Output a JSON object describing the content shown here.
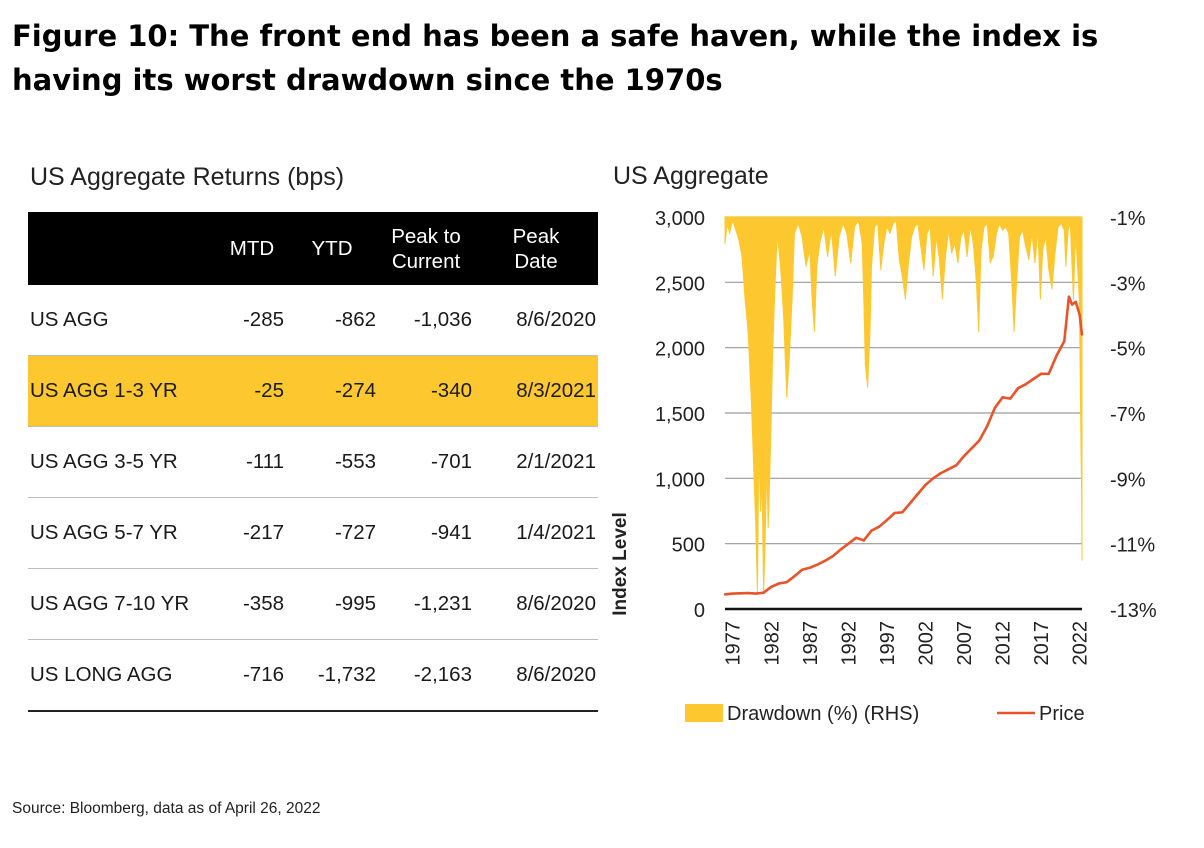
{
  "figure": {
    "title": "Figure 10: The front end has been a safe haven, while the index is having its worst drawdown since the 1970s",
    "source": "Source: Bloomberg, data as of April 26, 2022"
  },
  "table": {
    "title": "US Aggregate Returns (bps)",
    "headers": {
      "mtd": "MTD",
      "ytd": "YTD",
      "peak_line1": "Peak to",
      "peak_line2": "Current",
      "date_line1": "Peak",
      "date_line2": "Date"
    },
    "rows": [
      {
        "name": "US AGG",
        "mtd": "-285",
        "ytd": "-862",
        "peak": "-1,036",
        "date": "8/6/2020"
      },
      {
        "name": "US AGG 1-3 YR",
        "mtd": "-25",
        "ytd": "-274",
        "peak": "-340",
        "date": "8/3/2021"
      },
      {
        "name": "US AGG 3-5 YR",
        "mtd": "-111",
        "ytd": "-553",
        "peak": "-701",
        "date": "2/1/2021"
      },
      {
        "name": "US AGG 5-7 YR",
        "mtd": "-217",
        "ytd": "-727",
        "peak": "-941",
        "date": "1/4/2021"
      },
      {
        "name": "US AGG 7-10 YR",
        "mtd": "-358",
        "ytd": "-995",
        "peak": "-1,231",
        "date": "8/6/2020"
      },
      {
        "name": "US LONG AGG",
        "mtd": "-716",
        "ytd": "-1,732",
        "peak": "-2,163",
        "date": "8/6/2020"
      }
    ],
    "highlight_row": 1,
    "highlight_color": "#fdc82f"
  },
  "chart_data": {
    "type": "line",
    "title": "US Aggregate",
    "ylabel": "Index Level",
    "ylim": [
      0,
      3000
    ],
    "y_ticks": [
      "0",
      "500",
      "1,000",
      "1,500",
      "2,000",
      "2,500",
      "3,000"
    ],
    "y_right_lim": [
      -13,
      -1
    ],
    "y_right_ticks": [
      "-13%",
      "-11%",
      "-9%",
      "-7%",
      "-5%",
      "-3%",
      "-1%"
    ],
    "xlim": [
      1976,
      2022.3
    ],
    "x_ticks": [
      "1977",
      "1982",
      "1987",
      "1992",
      "1997",
      "2002",
      "2007",
      "2012",
      "2017",
      "2022"
    ],
    "grid": true,
    "legend_position": "bottom",
    "series": [
      {
        "name": "Drawdown (%) (RHS)",
        "kind": "area",
        "axis": "right",
        "color": "#fdc82f",
        "x": [
          1976,
          1976.3,
          1976.6,
          1977,
          1977.4,
          1977.8,
          1978.2,
          1978.6,
          1979,
          1979.4,
          1979.7,
          1980,
          1980.2,
          1980.4,
          1980.6,
          1980.8,
          1981,
          1981.2,
          1981.4,
          1981.6,
          1981.8,
          1982,
          1982.2,
          1982.5,
          1982.8,
          1983.2,
          1983.6,
          1984,
          1984.3,
          1984.7,
          1985,
          1985.5,
          1986,
          1986.5,
          1987,
          1987.3,
          1987.6,
          1987.9,
          1988.3,
          1988.8,
          1989.3,
          1989.8,
          1990.3,
          1990.8,
          1991.3,
          1991.8,
          1992.3,
          1992.8,
          1993.3,
          1993.8,
          1994,
          1994.2,
          1994.5,
          1994.8,
          1995,
          1995.4,
          1995.8,
          1996.2,
          1996.6,
          1997,
          1997.4,
          1997.8,
          1998.2,
          1998.6,
          1999,
          1999.4,
          1999.8,
          2000.2,
          2000.6,
          2001,
          2001.4,
          2001.8,
          2002.2,
          2002.6,
          2003,
          2003.4,
          2003.8,
          2004.2,
          2004.6,
          2005,
          2005.4,
          2005.8,
          2006.2,
          2006.6,
          2007,
          2007.4,
          2007.8,
          2008.2,
          2008.6,
          2008.9,
          2009.2,
          2009.6,
          2010,
          2010.4,
          2010.8,
          2011.2,
          2011.6,
          2012,
          2012.4,
          2012.8,
          2013.2,
          2013.5,
          2013.8,
          2014.2,
          2014.6,
          2015,
          2015.4,
          2015.8,
          2016.2,
          2016.6,
          2016.9,
          2017.2,
          2017.6,
          2018,
          2018.4,
          2018.8,
          2019.2,
          2019.6,
          2020,
          2020.2,
          2020.5,
          2020.8,
          2021,
          2021.2,
          2021.4,
          2021.6,
          2021.8,
          2021.95,
          2022.05,
          2022.15,
          2022.25,
          2022.3
        ],
        "values": [
          -1.8,
          -1.2,
          -1.5,
          -1.1,
          -1.4,
          -1.7,
          -2.2,
          -3.5,
          -4.5,
          -6.5,
          -8.5,
          -10.5,
          -12.5,
          -8,
          -10,
          -9,
          -12.5,
          -11,
          -8.5,
          -10.5,
          -9,
          -7,
          -5,
          -3,
          -1.5,
          -2.5,
          -4,
          -6.5,
          -5.5,
          -3.5,
          -1.5,
          -1.2,
          -1.6,
          -2.5,
          -2,
          -3.5,
          -4.5,
          -2.5,
          -1.8,
          -1.3,
          -2.2,
          -1.4,
          -2.8,
          -1.6,
          -1.2,
          -1.5,
          -2.4,
          -1.3,
          -1.1,
          -1.8,
          -3.5,
          -5.5,
          -6.2,
          -4.5,
          -2.5,
          -1.3,
          -1.2,
          -2.6,
          -1.8,
          -1.3,
          -1.5,
          -1.2,
          -1.1,
          -2.3,
          -2.8,
          -3.5,
          -2.4,
          -1.6,
          -1.3,
          -1.2,
          -1.9,
          -2.6,
          -1.5,
          -1.3,
          -2.8,
          -1.6,
          -2.3,
          -3.5,
          -2.2,
          -1.4,
          -2.1,
          -1.8,
          -2.4,
          -1.6,
          -1.4,
          -2.2,
          -1.3,
          -1.8,
          -3.0,
          -4.5,
          -2.0,
          -1.3,
          -1.2,
          -2.4,
          -2.2,
          -1.5,
          -1.2,
          -1.4,
          -1.3,
          -1.5,
          -3.0,
          -4.5,
          -3.0,
          -1.6,
          -1.4,
          -1.9,
          -2.3,
          -1.5,
          -2.4,
          -1.4,
          -3.5,
          -2.0,
          -1.6,
          -2.6,
          -3.2,
          -2.1,
          -1.3,
          -1.2,
          -1.4,
          -2.5,
          -1.4,
          -1.2,
          -2.5,
          -3.5,
          -1.8,
          -2.0,
          -2.8,
          -3.5,
          -5.5,
          -7.5,
          -9.5,
          -11.5
        ]
      },
      {
        "name": "Price",
        "kind": "line",
        "axis": "left",
        "color": "#e9532a",
        "x": [
          1976,
          1977,
          1978,
          1979,
          1980,
          1981,
          1982,
          1983,
          1984,
          1985,
          1986,
          1987,
          1988,
          1989,
          1990,
          1991,
          1992,
          1993,
          1994,
          1995,
          1996,
          1997,
          1998,
          1999,
          2000,
          2001,
          2002,
          2003,
          2004,
          2005,
          2006,
          2007,
          2008,
          2009,
          2010,
          2011,
          2012,
          2013,
          2014,
          2015,
          2016,
          2017,
          2018,
          2019,
          2020,
          2020.6,
          2021,
          2021.5,
          2022,
          2022.3
        ],
        "values": [
          112,
          118,
          120,
          122,
          118,
          125,
          170,
          195,
          205,
          250,
          300,
          315,
          340,
          370,
          405,
          455,
          500,
          545,
          525,
          600,
          630,
          680,
          735,
          740,
          810,
          880,
          950,
          1000,
          1040,
          1070,
          1100,
          1170,
          1230,
          1290,
          1400,
          1540,
          1620,
          1610,
          1690,
          1720,
          1760,
          1800,
          1800,
          1940,
          2050,
          2390,
          2330,
          2350,
          2250,
          2100
        ]
      }
    ]
  }
}
